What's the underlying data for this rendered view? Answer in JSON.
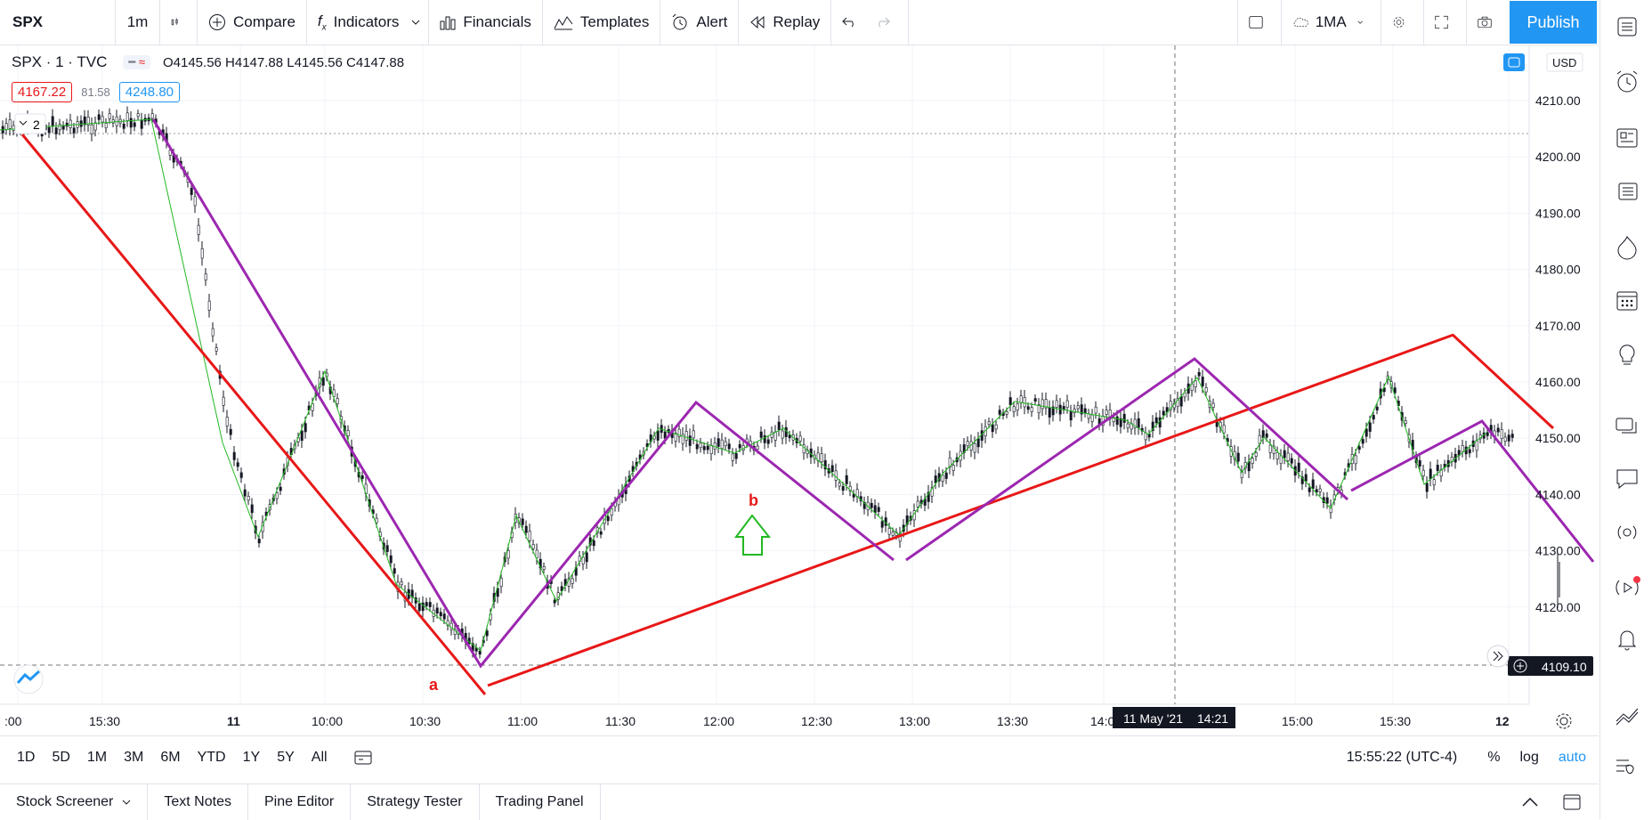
{
  "toolbar": {
    "symbol": "SPX",
    "interval": "1m",
    "compare": "Compare",
    "indicators": "Indicators",
    "financials": "Financials",
    "templates": "Templates",
    "alert": "Alert",
    "replay": "Replay",
    "layout_label": "1MA",
    "publish": "Publish"
  },
  "legend": {
    "title": "SPX · 1 · TVC",
    "ohlc": "O4145.56  H4147.88  L4145.56  C4147.88",
    "bid": "4167.22",
    "spread": "81.58",
    "ask": "4248.80",
    "collapse_count": "2"
  },
  "price_axis": {
    "currency": "USD",
    "ticks": [
      "4210.00",
      "4200.00",
      "4190.00",
      "4180.00",
      "4170.00",
      "4160.00",
      "4150.00",
      "4140.00",
      "4130.00",
      "4120.00"
    ],
    "current_price": "4109.10"
  },
  "time_axis": {
    "ticks": [
      ":00",
      "15:30",
      "11",
      "10:00",
      "10:30",
      "11:00",
      "11:30",
      "12:00",
      "12:30",
      "13:00",
      "13:30",
      "14:0",
      "15:00",
      "15:30",
      "12"
    ],
    "crosshair_date": "11 May '21",
    "crosshair_time": "14:21"
  },
  "annotations": {
    "a": "a",
    "b": "b"
  },
  "ranges": [
    "1D",
    "5D",
    "1M",
    "3M",
    "6M",
    "YTD",
    "1Y",
    "5Y",
    "All"
  ],
  "status": {
    "clock": "15:55:22 (UTC-4)",
    "percent": "%",
    "log": "log",
    "auto": "auto"
  },
  "footer_tabs": [
    "Stock Screener",
    "Text Notes",
    "Pine Editor",
    "Strategy Tester",
    "Trading Panel"
  ],
  "colors": {
    "accent": "#2196f3",
    "red_line": "#e81717",
    "purple_line": "#9c27b0",
    "green_line": "#22b822"
  }
}
